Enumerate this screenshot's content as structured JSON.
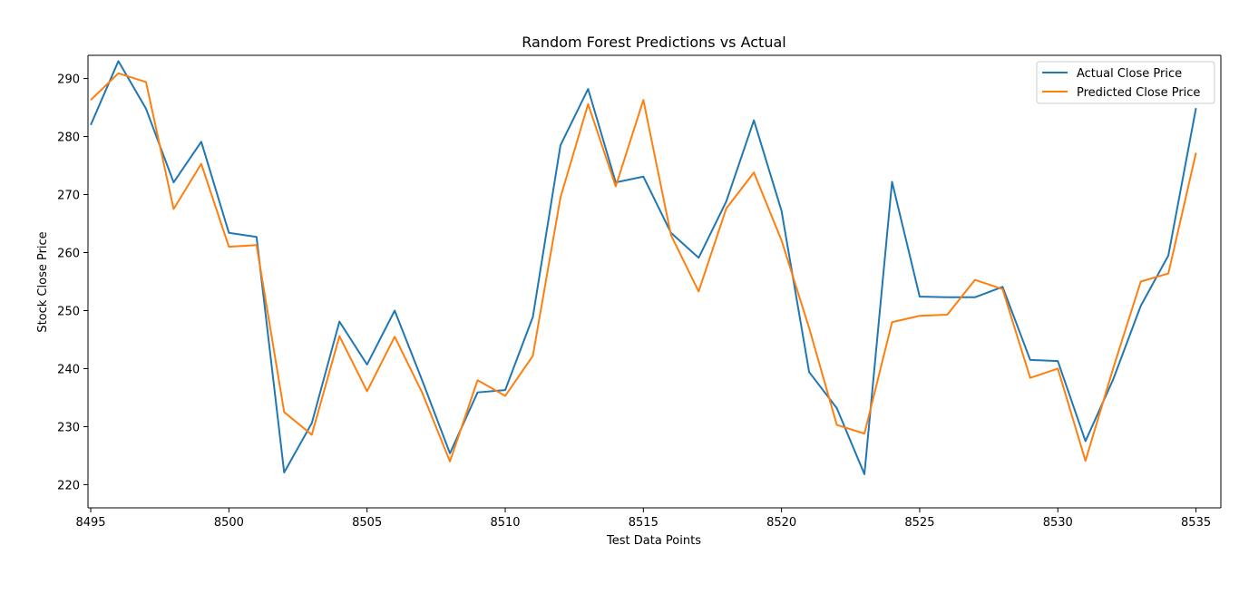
{
  "chart_data": {
    "type": "line",
    "title": "Random Forest Predictions vs Actual",
    "xlabel": "Test Data Points",
    "ylabel": "Stock Close Price",
    "xlim": [
      8494.9,
      8535.9
    ],
    "ylim": [
      216.0,
      294.0
    ],
    "xticks": [
      8495,
      8500,
      8505,
      8510,
      8515,
      8520,
      8525,
      8530,
      8535
    ],
    "yticks": [
      220,
      230,
      240,
      250,
      260,
      270,
      280,
      290
    ],
    "grid": false,
    "legend_position": "top-right",
    "x": [
      8495,
      8496,
      8497,
      8498,
      8499,
      8500,
      8501,
      8502,
      8503,
      8504,
      8505,
      8506,
      8507,
      8508,
      8509,
      8510,
      8511,
      8512,
      8513,
      8514,
      8515,
      8516,
      8517,
      8518,
      8519,
      8520,
      8521,
      8522,
      8523,
      8524,
      8525,
      8526,
      8527,
      8528,
      8529,
      8530,
      8531,
      8532,
      8533,
      8534,
      8535
    ],
    "series": [
      {
        "name": "Actual Close Price",
        "color": "#1f77b4",
        "values": [
          282.0,
          293.0,
          284.8,
          272.1,
          279.1,
          263.4,
          262.7,
          222.1,
          230.6,
          248.1,
          240.7,
          250.0,
          237.9,
          225.4,
          235.9,
          236.3,
          248.9,
          278.5,
          288.2,
          272.1,
          273.1,
          263.4,
          259.1,
          268.8,
          282.8,
          267.2,
          239.4,
          233.2,
          221.8,
          272.2,
          252.4,
          252.3,
          252.3,
          254.1,
          241.5,
          241.3,
          227.5,
          238.1,
          250.8,
          259.5,
          284.9
        ]
      },
      {
        "name": "Predicted Close Price",
        "color": "#ff7f0e",
        "values": [
          286.3,
          290.9,
          289.4,
          267.5,
          275.3,
          261.0,
          261.3,
          232.5,
          228.6,
          245.6,
          236.1,
          245.5,
          235.8,
          224.0,
          238.0,
          235.3,
          242.2,
          269.5,
          285.6,
          271.4,
          286.3,
          263.0,
          253.3,
          267.6,
          273.8,
          262.1,
          247.0,
          230.3,
          228.8,
          248.0,
          249.1,
          249.3,
          255.3,
          253.7,
          238.4,
          240.0,
          224.1,
          240.0,
          255.0,
          256.4,
          277.2
        ]
      }
    ]
  }
}
